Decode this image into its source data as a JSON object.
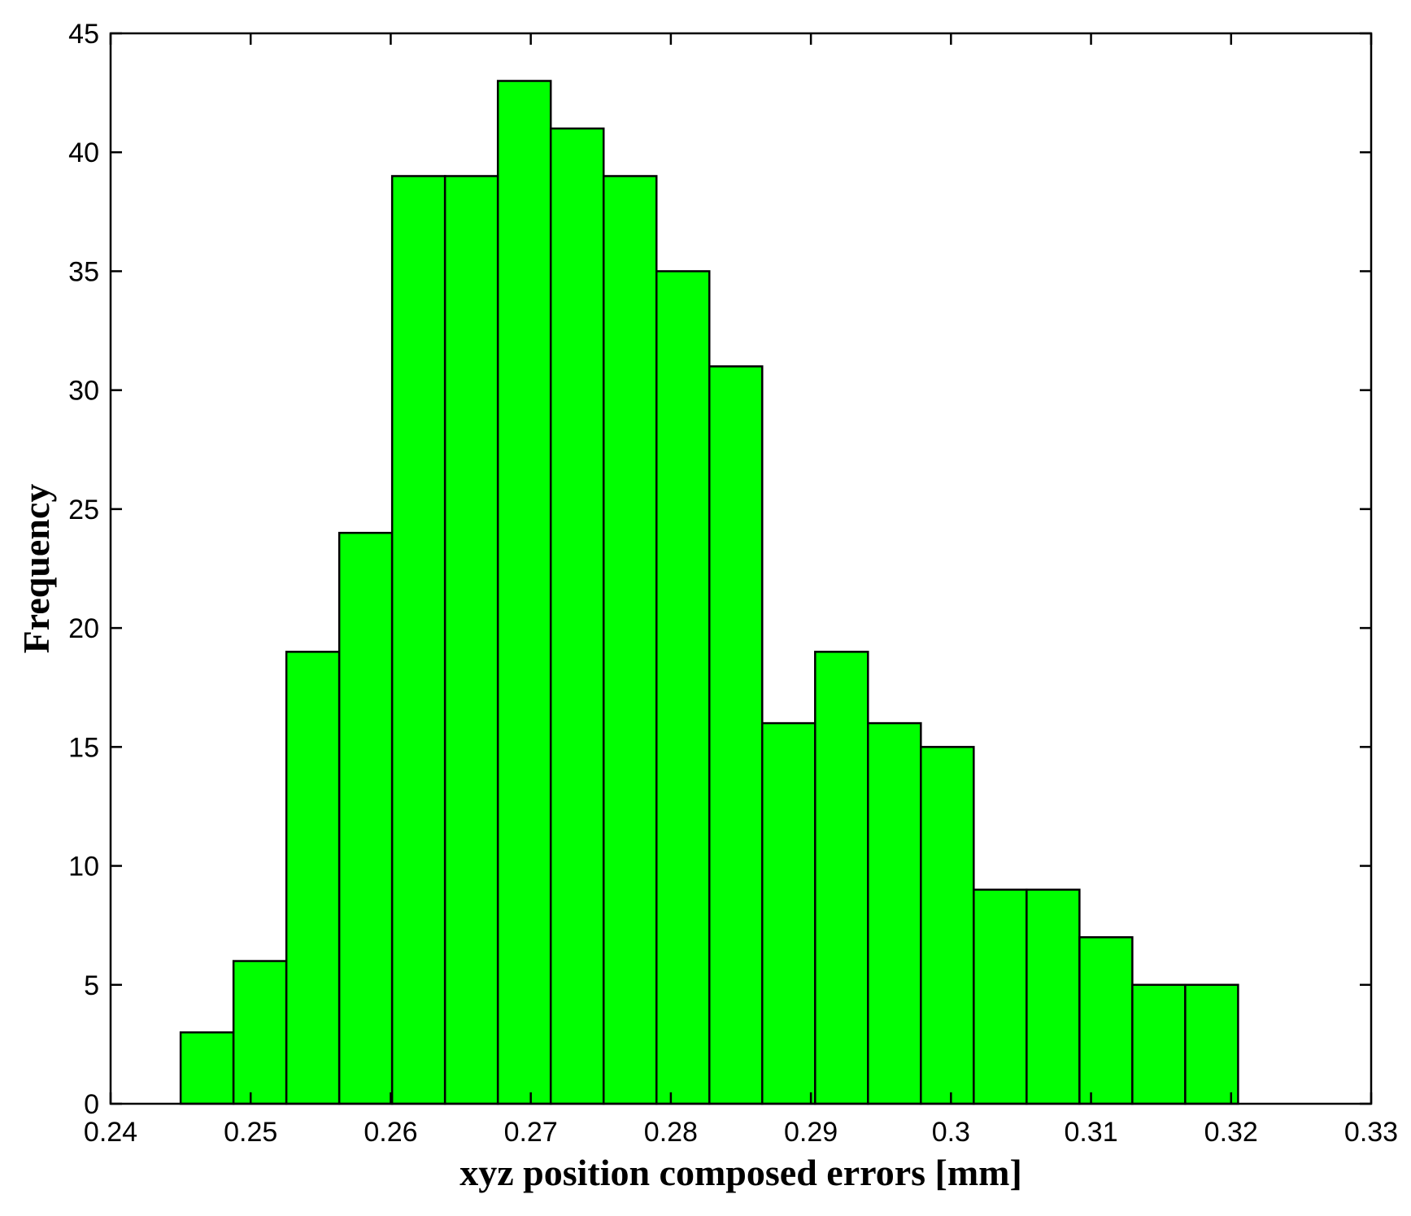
{
  "chart_data": {
    "type": "bar",
    "title": "",
    "xlabel": "xyz position composed errors [mm]",
    "ylabel": "Frequency",
    "xlim": [
      0.24,
      0.33
    ],
    "ylim": [
      0,
      45
    ],
    "xticks": [
      "0.24",
      "0.25",
      "0.26",
      "0.27",
      "0.28",
      "0.29",
      "0.3",
      "0.31",
      "0.32",
      "0.33"
    ],
    "yticks": [
      "0",
      "5",
      "10",
      "15",
      "20",
      "25",
      "30",
      "35",
      "40",
      "45"
    ],
    "bin_range": [
      0.245,
      0.3205
    ],
    "values": [
      3,
      6,
      19,
      24,
      39,
      39,
      43,
      41,
      39,
      35,
      31,
      16,
      19,
      16,
      15,
      9,
      9,
      7,
      5,
      5
    ],
    "bar_color": "#00ff00",
    "grid": false
  }
}
